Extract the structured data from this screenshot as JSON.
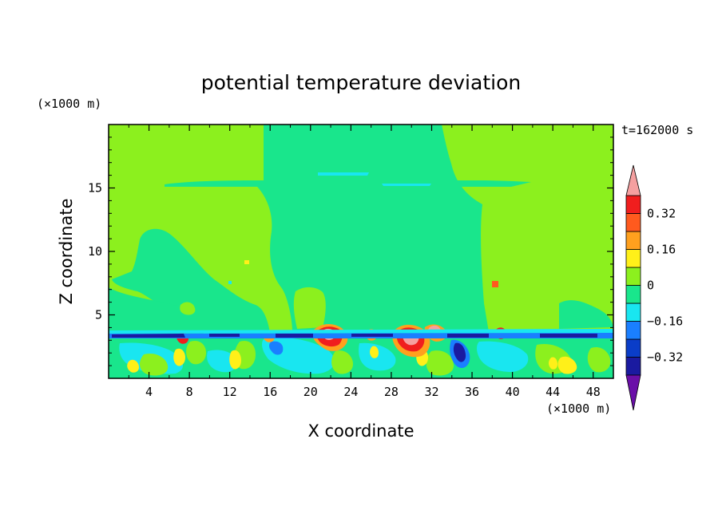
{
  "chart_data": {
    "type": "heatmap",
    "title": "potential temperature deviation",
    "xlabel": "X coordinate",
    "ylabel": "Z coordinate",
    "x_unit": "(×1000 m)",
    "y_unit": "(×1000 m)",
    "time_label": "t=162000 s",
    "xlim": [
      0,
      50
    ],
    "ylim": [
      0,
      20
    ],
    "x_ticks": [
      4,
      8,
      12,
      16,
      20,
      24,
      28,
      32,
      36,
      40,
      44,
      48
    ],
    "y_ticks": [
      5,
      10,
      15
    ],
    "colorbar": {
      "levels": [
        -0.4,
        -0.32,
        -0.24,
        -0.16,
        -0.08,
        0,
        0.08,
        0.16,
        0.24,
        0.32,
        0.4
      ],
      "labels": [
        "0.32",
        "0.16",
        "0",
        "−0.16",
        "−0.32"
      ],
      "label_values": [
        0.32,
        0.16,
        0,
        -0.16,
        -0.32
      ],
      "colors": {
        "below": "#6a0fa8",
        "bands": [
          "#1a1aa0",
          "#0a3dc8",
          "#1a7fff",
          "#19e6f0",
          "#19e68c",
          "#8cf01e",
          "#fff019",
          "#ffa01e",
          "#ff5a1e",
          "#f01e1e"
        ],
        "above": "#f5a0a0"
      }
    }
  }
}
